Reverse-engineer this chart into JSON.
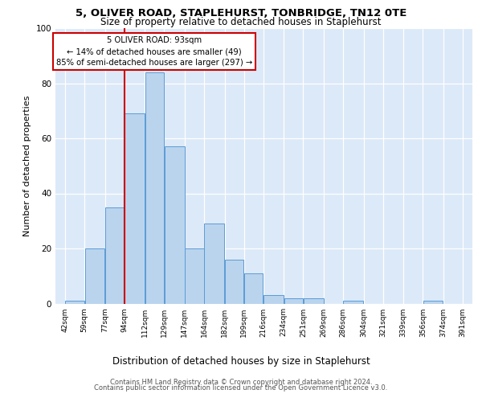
{
  "title_line1": "5, OLIVER ROAD, STAPLEHURST, TONBRIDGE, TN12 0TE",
  "title_line2": "Size of property relative to detached houses in Staplehurst",
  "xlabel": "Distribution of detached houses by size in Staplehurst",
  "ylabel": "Number of detached properties",
  "bar_heights": [
    1,
    20,
    35,
    69,
    84,
    57,
    20,
    29,
    16,
    11,
    3,
    2,
    2,
    0,
    1,
    0,
    0,
    0,
    1,
    0
  ],
  "bin_labels": [
    "42sqm",
    "59sqm",
    "77sqm",
    "94sqm",
    "112sqm",
    "129sqm",
    "147sqm",
    "164sqm",
    "182sqm",
    "199sqm",
    "216sqm",
    "234sqm",
    "251sqm",
    "269sqm",
    "286sqm",
    "304sqm",
    "321sqm",
    "339sqm",
    "356sqm",
    "374sqm",
    "391sqm"
  ],
  "bar_color": "#bad4ee",
  "bar_edge_color": "#5b9bd5",
  "vline_x": 94,
  "vline_color": "#cc0000",
  "annotation_text": "5 OLIVER ROAD: 93sqm\n← 14% of detached houses are smaller (49)\n85% of semi-detached houses are larger (297) →",
  "annotation_box_edge": "#cc0000",
  "ylim": [
    0,
    100
  ],
  "yticks": [
    0,
    20,
    40,
    60,
    80,
    100
  ],
  "footer_line1": "Contains HM Land Registry data © Crown copyright and database right 2024.",
  "footer_line2": "Contains public sector information licensed under the Open Government Licence v3.0.",
  "background_color": "#dce9f8",
  "grid_color": "#ffffff",
  "tick_values": [
    42,
    59,
    77,
    94,
    112,
    129,
    147,
    164,
    182,
    199,
    216,
    234,
    251,
    269,
    286,
    304,
    321,
    339,
    356,
    374,
    391
  ]
}
